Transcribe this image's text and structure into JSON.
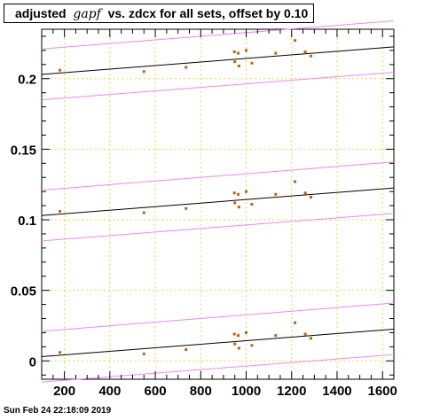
{
  "chart_data": {
    "type": "scatter",
    "title_prefix": "adjusted",
    "title_var": "gapf",
    "title_suffix": "vs. zdcx for all sets, offset by 0.10",
    "xlim": [
      100,
      1650
    ],
    "ylim": [
      -0.013,
      0.235
    ],
    "x_ticks": [
      200,
      400,
      600,
      800,
      1000,
      1200,
      1400,
      1600
    ],
    "y_ticks": [
      0,
      0.05,
      0.1,
      0.15,
      0.2
    ],
    "y_tick_labels": [
      "0",
      "0.05",
      "0.1",
      "0.15",
      "0.2"
    ],
    "grid": true,
    "point_color": "#c06010",
    "fit_color": "#000000",
    "band_color": "#ee88ee",
    "grid_color": "#dddd44",
    "offset": 0.1,
    "points": [
      {
        "x": 180,
        "y": 0.006
      },
      {
        "x": 550,
        "y": 0.005
      },
      {
        "x": 735,
        "y": 0.008
      },
      {
        "x": 948,
        "y": 0.019
      },
      {
        "x": 950,
        "y": 0.012
      },
      {
        "x": 965,
        "y": 0.018
      },
      {
        "x": 968,
        "y": 0.009
      },
      {
        "x": 1000,
        "y": 0.02
      },
      {
        "x": 1025,
        "y": 0.011
      },
      {
        "x": 1130,
        "y": 0.018
      },
      {
        "x": 1215,
        "y": 0.027
      },
      {
        "x": 1260,
        "y": 0.019
      },
      {
        "x": 1285,
        "y": 0.016
      }
    ],
    "sets": [
      {
        "offset": 0.0,
        "fit": [
          [
            100,
            0.003
          ],
          [
            1650,
            0.0225
          ]
        ],
        "band_upper": [
          [
            100,
            0.021
          ],
          [
            1650,
            0.041
          ]
        ],
        "band_lower": [
          [
            100,
            -0.015
          ],
          [
            1650,
            0.0045
          ]
        ]
      },
      {
        "offset": 0.1,
        "fit": [
          [
            100,
            0.103
          ],
          [
            1650,
            0.1225
          ]
        ],
        "band_upper": [
          [
            100,
            0.121
          ],
          [
            1650,
            0.141
          ]
        ],
        "band_lower": [
          [
            100,
            0.085
          ],
          [
            1650,
            0.1045
          ]
        ]
      },
      {
        "offset": 0.2,
        "fit": [
          [
            100,
            0.203
          ],
          [
            1650,
            0.2225
          ]
        ],
        "band_upper": [
          [
            100,
            0.221
          ],
          [
            1650,
            0.241
          ]
        ],
        "band_lower": [
          [
            100,
            0.185
          ],
          [
            1650,
            0.2045
          ]
        ]
      }
    ]
  },
  "footer": {
    "timestamp": "Sun Feb 24 22:18:09 2019"
  }
}
